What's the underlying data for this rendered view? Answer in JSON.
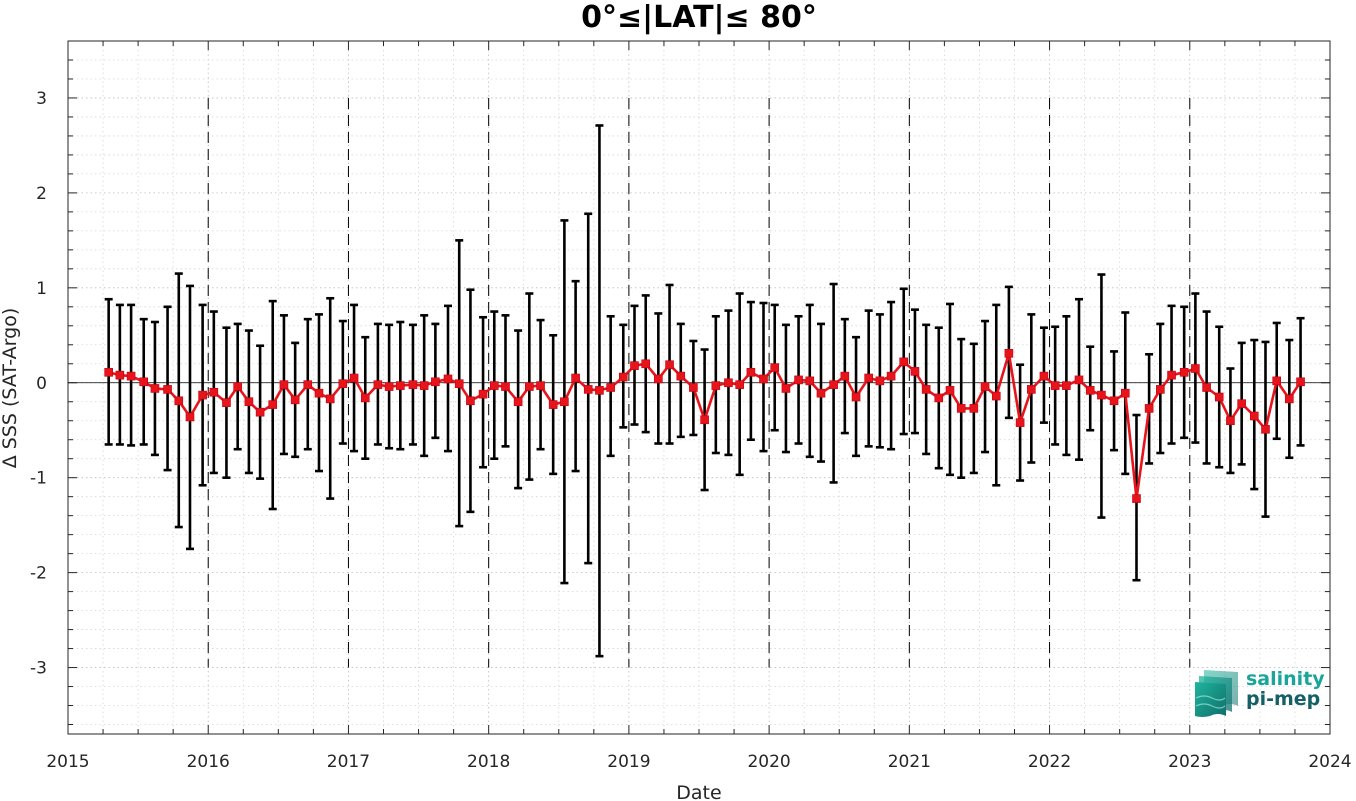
{
  "chart_data": {
    "type": "line",
    "title": "0°≤|LAT|≤ 80°",
    "xlabel": "Date",
    "ylabel": "Δ SSS (SAT-Argo)",
    "xlim": [
      2015.0,
      2024.0
    ],
    "ylim": [
      -3.7,
      3.6
    ],
    "x_ticks": [
      2015,
      2016,
      2017,
      2018,
      2019,
      2020,
      2021,
      2022,
      2023,
      2024
    ],
    "x_tick_labels": [
      "2015",
      "2016",
      "2017",
      "2018",
      "2019",
      "2020",
      "2021",
      "2022",
      "2023",
      "2024"
    ],
    "y_ticks": [
      -3,
      -2,
      -1,
      0,
      1,
      2,
      3
    ],
    "y_tick_labels": [
      "-3",
      "-2",
      "-1",
      "0",
      "1",
      "2",
      "3"
    ],
    "grid": "dotted",
    "year_separators": [
      2016,
      2017,
      2018,
      2019,
      2020,
      2021,
      2022,
      2023
    ],
    "colors": {
      "line": "#e8141c",
      "marker": "#e8141c",
      "errorbar": "#000000",
      "zero_line": "#000000"
    },
    "series": [
      {
        "name": "",
        "x": [
          2015.29,
          2015.37,
          2015.45,
          2015.54,
          2015.62,
          2015.71,
          2015.79,
          2015.87,
          2015.96,
          2016.04,
          2016.13,
          2016.21,
          2016.29,
          2016.37,
          2016.46,
          2016.54,
          2016.62,
          2016.71,
          2016.79,
          2016.87,
          2016.96,
          2017.04,
          2017.12,
          2017.21,
          2017.29,
          2017.37,
          2017.46,
          2017.54,
          2017.62,
          2017.71,
          2017.79,
          2017.87,
          2017.96,
          2018.04,
          2018.12,
          2018.21,
          2018.29,
          2018.37,
          2018.46,
          2018.54,
          2018.62,
          2018.71,
          2018.79,
          2018.87,
          2018.96,
          2019.04,
          2019.12,
          2019.21,
          2019.29,
          2019.37,
          2019.46,
          2019.54,
          2019.62,
          2019.71,
          2019.79,
          2019.87,
          2019.96,
          2020.04,
          2020.12,
          2020.21,
          2020.29,
          2020.37,
          2020.46,
          2020.54,
          2020.62,
          2020.71,
          2020.79,
          2020.87,
          2020.96,
          2021.04,
          2021.12,
          2021.21,
          2021.29,
          2021.37,
          2021.46,
          2021.54,
          2021.62,
          2021.71,
          2021.79,
          2021.87,
          2021.96,
          2022.04,
          2022.12,
          2022.21,
          2022.29,
          2022.37,
          2022.46,
          2022.54,
          2022.62,
          2022.71,
          2022.79,
          2022.87,
          2022.96,
          2023.04,
          2023.12,
          2023.21,
          2023.29,
          2023.37,
          2023.46,
          2023.54,
          2023.62,
          2023.71,
          2023.79
        ],
        "y": [
          0.11,
          0.08,
          0.07,
          0.01,
          -0.06,
          -0.07,
          -0.19,
          -0.36,
          -0.13,
          -0.1,
          -0.21,
          -0.04,
          -0.2,
          -0.31,
          -0.23,
          -0.02,
          -0.18,
          -0.02,
          -0.11,
          -0.17,
          -0.01,
          0.05,
          -0.16,
          -0.02,
          -0.04,
          -0.03,
          -0.02,
          -0.03,
          0.01,
          0.04,
          -0.01,
          -0.19,
          -0.12,
          -0.03,
          -0.04,
          -0.2,
          -0.04,
          -0.03,
          -0.23,
          -0.2,
          0.05,
          -0.07,
          -0.08,
          -0.05,
          0.06,
          0.18,
          0.2,
          0.04,
          0.19,
          0.07,
          -0.05,
          -0.39,
          -0.03,
          0.0,
          -0.02,
          0.11,
          0.04,
          0.16,
          -0.06,
          0.03,
          0.02,
          -0.11,
          -0.02,
          0.07,
          -0.15,
          0.05,
          0.02,
          0.07,
          0.22,
          0.12,
          -0.07,
          -0.16,
          -0.08,
          -0.27,
          -0.27,
          -0.04,
          -0.14,
          0.31,
          -0.42,
          -0.07,
          0.07,
          -0.03,
          -0.03,
          0.03,
          -0.08,
          -0.13,
          -0.19,
          -0.11,
          -1.22,
          -0.27,
          -0.07,
          0.08,
          0.11,
          0.15,
          -0.05,
          -0.15,
          -0.4,
          -0.22,
          -0.35,
          -0.49,
          0.02,
          -0.17,
          0.01
        ],
        "upper": [
          0.88,
          0.82,
          0.82,
          0.67,
          0.64,
          0.8,
          1.15,
          1.02,
          0.82,
          0.75,
          0.58,
          0.62,
          0.55,
          0.39,
          0.86,
          0.71,
          0.42,
          0.67,
          0.72,
          0.89,
          0.65,
          0.82,
          0.48,
          0.62,
          0.61,
          0.64,
          0.61,
          0.71,
          0.62,
          0.81,
          1.5,
          0.98,
          0.69,
          0.75,
          0.71,
          0.55,
          0.94,
          0.66,
          0.5,
          1.71,
          1.07,
          1.78,
          2.71,
          0.7,
          0.61,
          0.81,
          0.92,
          0.73,
          1.03,
          0.62,
          0.44,
          0.35,
          0.7,
          0.76,
          0.94,
          0.85,
          0.84,
          0.82,
          0.61,
          0.7,
          0.82,
          0.62,
          1.04,
          0.67,
          0.48,
          0.76,
          0.72,
          0.85,
          0.99,
          0.77,
          0.61,
          0.58,
          0.83,
          0.46,
          0.41,
          0.65,
          0.82,
          1.01,
          0.19,
          0.72,
          0.58,
          0.59,
          0.7,
          0.88,
          0.38,
          1.14,
          0.33,
          0.74,
          -0.34,
          0.3,
          0.62,
          0.81,
          0.8,
          0.94,
          0.75,
          0.59,
          0.15,
          0.42,
          0.45,
          0.43,
          0.63,
          0.45,
          0.68
        ],
        "lower": [
          -0.65,
          -0.65,
          -0.66,
          -0.65,
          -0.76,
          -0.92,
          -1.52,
          -1.75,
          -1.08,
          -0.95,
          -1.0,
          -0.7,
          -0.95,
          -1.01,
          -1.33,
          -0.75,
          -0.78,
          -0.7,
          -0.93,
          -1.22,
          -0.64,
          -0.72,
          -0.8,
          -0.65,
          -0.69,
          -0.7,
          -0.65,
          -0.77,
          -0.58,
          -0.72,
          -1.51,
          -1.36,
          -0.89,
          -0.8,
          -0.67,
          -1.11,
          -1.02,
          -0.7,
          -0.96,
          -2.11,
          -0.93,
          -1.9,
          -2.88,
          -0.77,
          -0.47,
          -0.44,
          -0.52,
          -0.64,
          -0.64,
          -0.57,
          -0.55,
          -1.13,
          -0.74,
          -0.76,
          -0.97,
          -0.6,
          -0.72,
          -0.5,
          -0.73,
          -0.64,
          -0.78,
          -0.83,
          -1.05,
          -0.53,
          -0.77,
          -0.67,
          -0.68,
          -0.7,
          -0.54,
          -0.53,
          -0.75,
          -0.9,
          -0.97,
          -1.0,
          -0.95,
          -0.73,
          -1.08,
          -0.37,
          -1.03,
          -0.84,
          -0.42,
          -0.65,
          -0.76,
          -0.81,
          -0.5,
          -1.42,
          -0.71,
          -0.96,
          -2.08,
          -0.85,
          -0.74,
          -0.64,
          -0.58,
          -0.63,
          -0.85,
          -0.89,
          -0.95,
          -0.86,
          -1.12,
          -1.41,
          -0.59,
          -0.79,
          -0.66
        ]
      }
    ]
  },
  "logo": {
    "line1": "salinity",
    "line2": "pi-mep",
    "color1": "#1aa59a",
    "color2": "#155f66"
  }
}
